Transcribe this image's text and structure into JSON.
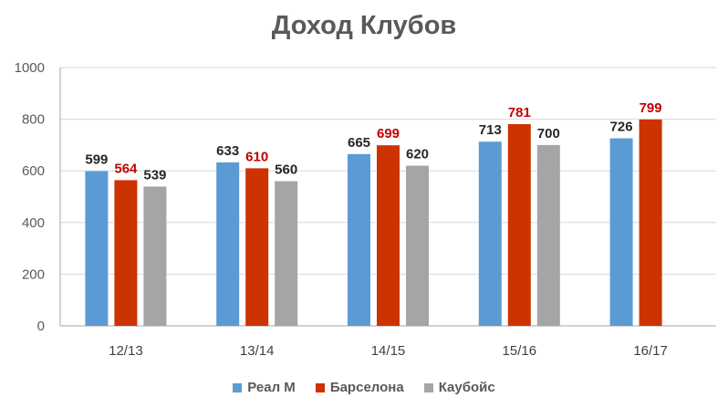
{
  "chart_data": {
    "type": "bar",
    "title": "Доход Клубов",
    "categories": [
      "12/13",
      "13/14",
      "14/15",
      "15/16",
      "16/17"
    ],
    "series": [
      {
        "name": "Реал М",
        "color": "#5B9BD5",
        "label_color": "#262626",
        "values": [
          599,
          633,
          665,
          713,
          726
        ]
      },
      {
        "name": "Барселона",
        "color": "#CC3300",
        "label_color": "#C00000",
        "values": [
          564,
          610,
          699,
          781,
          799
        ]
      },
      {
        "name": "Каубойс",
        "color": "#A5A5A5",
        "label_color": "#262626",
        "values": [
          539,
          560,
          620,
          700,
          null
        ]
      }
    ],
    "ylim": [
      0,
      1000
    ],
    "yticks": [
      0,
      200,
      400,
      600,
      800,
      1000
    ],
    "grid": true,
    "legend_position": "bottom"
  }
}
